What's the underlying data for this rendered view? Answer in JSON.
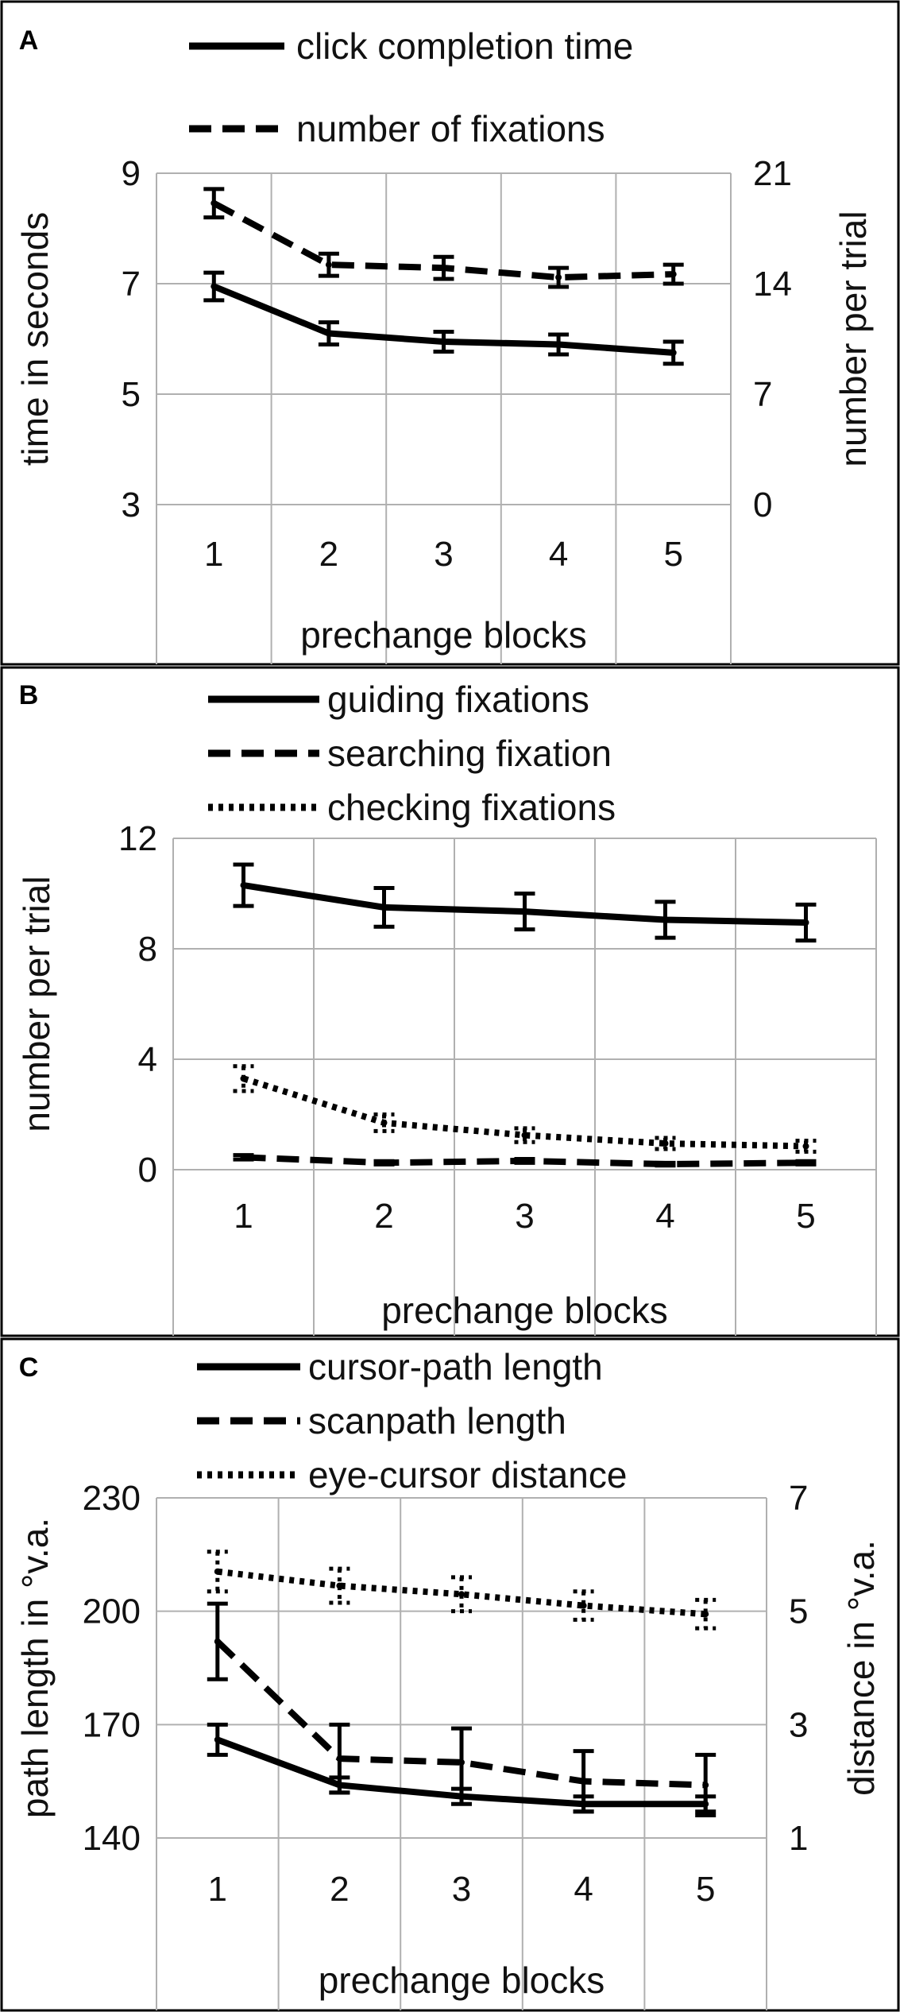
{
  "chart_data": [
    {
      "type": "line",
      "panel_label": "A",
      "xlabel": "prechange blocks",
      "categories": [
        "1",
        "2",
        "3",
        "4",
        "5"
      ],
      "y_left": {
        "label": "time in seconds",
        "lim": [
          3,
          9
        ],
        "ticks": [
          "3",
          "5",
          "7",
          "9"
        ]
      },
      "y_right": {
        "label": "number per trial",
        "lim": [
          0,
          21
        ],
        "ticks": [
          "0",
          "7",
          "14",
          "21"
        ]
      },
      "grid": true,
      "legend_position": "top",
      "series": [
        {
          "name": "click completion time",
          "axis": "left",
          "style": "solid",
          "values": [
            6.95,
            6.1,
            5.95,
            5.9,
            5.75
          ],
          "err": [
            0.25,
            0.2,
            0.18,
            0.18,
            0.2
          ]
        },
        {
          "name": "number of fixations",
          "axis": "right",
          "style": "dashed",
          "values": [
            19.1,
            15.2,
            15.0,
            14.4,
            14.6
          ],
          "err": [
            0.9,
            0.7,
            0.7,
            0.6,
            0.6
          ]
        }
      ]
    },
    {
      "type": "line",
      "panel_label": "B",
      "xlabel": "prechange blocks",
      "categories": [
        "1",
        "2",
        "3",
        "4",
        "5"
      ],
      "y_left": {
        "label": "number per trial",
        "lim": [
          0,
          12
        ],
        "ticks": [
          "0",
          "4",
          "8",
          "12"
        ]
      },
      "grid": true,
      "legend_position": "top",
      "series": [
        {
          "name": "guiding fixations",
          "axis": "left",
          "style": "solid",
          "values": [
            10.3,
            9.5,
            9.35,
            9.05,
            8.95
          ],
          "err": [
            0.75,
            0.7,
            0.65,
            0.65,
            0.65
          ]
        },
        {
          "name": "searching fixation",
          "axis": "left",
          "style": "dashed",
          "values": [
            0.45,
            0.25,
            0.32,
            0.2,
            0.25
          ],
          "err": [
            0.08,
            0.06,
            0.07,
            0.05,
            0.06
          ]
        },
        {
          "name": "checking fixations",
          "axis": "left",
          "style": "dotted",
          "values": [
            3.3,
            1.7,
            1.25,
            0.95,
            0.85
          ],
          "err": [
            0.45,
            0.3,
            0.25,
            0.2,
            0.2
          ]
        }
      ]
    },
    {
      "type": "line",
      "panel_label": "C",
      "xlabel": "prechange blocks",
      "categories": [
        "1",
        "2",
        "3",
        "4",
        "5"
      ],
      "y_left": {
        "label": "path length in °v.a.",
        "lim": [
          140,
          230
        ],
        "ticks": [
          "140",
          "170",
          "200",
          "230"
        ]
      },
      "y_right": {
        "label": "distance in °v.a.",
        "lim": [
          1,
          7
        ],
        "ticks": [
          "1",
          "3",
          "5",
          "7"
        ]
      },
      "grid": true,
      "legend_position": "top",
      "series": [
        {
          "name": "cursor-path length",
          "axis": "left",
          "style": "solid",
          "values": [
            166,
            154,
            151,
            149,
            149
          ],
          "err": [
            4,
            2,
            2,
            2,
            2
          ]
        },
        {
          "name": "scanpath length",
          "axis": "left",
          "style": "dashed",
          "values": [
            192,
            161,
            160,
            155,
            154
          ],
          "err": [
            10,
            9,
            9,
            8,
            8
          ]
        },
        {
          "name": "eye-cursor distance",
          "axis": "right",
          "style": "dotted",
          "values": [
            5.7,
            5.45,
            5.3,
            5.1,
            4.95
          ],
          "err": [
            0.35,
            0.3,
            0.3,
            0.25,
            0.25
          ]
        }
      ]
    }
  ]
}
